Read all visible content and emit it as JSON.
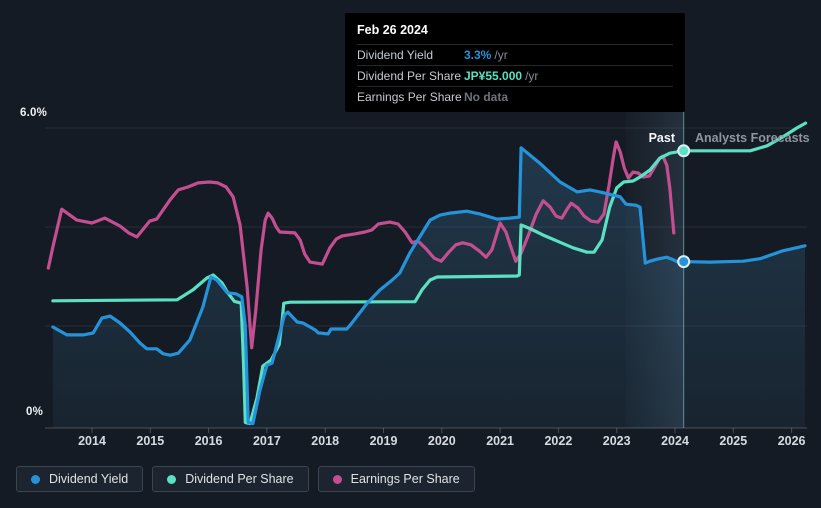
{
  "tooltip": {
    "date": "Feb 26 2024",
    "rows": [
      {
        "label": "Dividend Yield",
        "value": "3.3%",
        "suffix": "/yr",
        "value_color": "#2593d9"
      },
      {
        "label": "Dividend Per Share",
        "value": "JP¥55.000",
        "suffix": "/yr",
        "value_color": "#5be0c3"
      },
      {
        "label": "Earnings Per Share",
        "value": "No data",
        "suffix": "",
        "value_color": "#6d747d"
      }
    ]
  },
  "annotations": {
    "past_label": "Past",
    "forecast_label": "Analysts Forecasts"
  },
  "y_axis": {
    "top_label": "6.0%",
    "bottom_label": "0%"
  },
  "legend": [
    {
      "label": "Dividend Yield",
      "color": "#2593d9"
    },
    {
      "label": "Dividend Per Share",
      "color": "#5be0c3"
    },
    {
      "label": "Earnings Per Share",
      "color": "#c44f90"
    }
  ],
  "colors": {
    "background": "#151b24",
    "gridline": "rgba(151,166,184,0.13)",
    "axis_line": "rgba(151,166,184,0.38)",
    "divider": "rgba(141,184,211,0.65)",
    "band": "rgba(125,175,210,0.15)",
    "area_fill": "rgba(70,150,200,0.22)",
    "dot_ring": "#ddeef5"
  },
  "chart_data": {
    "type": "line",
    "title": "Dividend history and forecast",
    "x_axis": {
      "tick_labels": [
        "2014",
        "2015",
        "2016",
        "2017",
        "2018",
        "2019",
        "2020",
        "2021",
        "2022",
        "2023",
        "2024",
        "2025",
        "2026"
      ],
      "tick_years": [
        2014,
        2015,
        2016,
        2017,
        2018,
        2019,
        2020,
        2021,
        2022,
        2023,
        2024,
        2025,
        2026
      ]
    },
    "y_axis": {
      "min_pct": 0,
      "max_pct": 6,
      "gridline_pcts": [
        6,
        4,
        2
      ],
      "unit": "% (dividend yield axis; other series plotted on same canvas)"
    },
    "divider_year": 2024.15,
    "highlight_band": [
      2023.15,
      2024.15
    ],
    "legend_position": "bottom-left",
    "series": [
      {
        "name": "Earnings Per Share",
        "color": "#c44f90",
        "note": "axis position in % of yield scale; numeric EPS not labeled on chart (tooltip: No data)",
        "points": [
          [
            2013.25,
            3.17
          ],
          [
            2013.33,
            3.6
          ],
          [
            2013.48,
            4.36
          ],
          [
            2013.74,
            4.14
          ],
          [
            2014.0,
            4.08
          ],
          [
            2014.22,
            4.18
          ],
          [
            2014.48,
            4.02
          ],
          [
            2014.63,
            3.88
          ],
          [
            2014.77,
            3.8
          ],
          [
            2014.99,
            4.12
          ],
          [
            2015.11,
            4.16
          ],
          [
            2015.34,
            4.55
          ],
          [
            2015.48,
            4.75
          ],
          [
            2015.65,
            4.81
          ],
          [
            2015.82,
            4.89
          ],
          [
            2016.02,
            4.91
          ],
          [
            2016.16,
            4.89
          ],
          [
            2016.3,
            4.81
          ],
          [
            2016.42,
            4.61
          ],
          [
            2016.54,
            4.04
          ],
          [
            2016.66,
            2.79
          ],
          [
            2016.74,
            1.56
          ],
          [
            2016.81,
            2.32
          ],
          [
            2016.9,
            3.54
          ],
          [
            2016.97,
            4.14
          ],
          [
            2017.02,
            4.28
          ],
          [
            2017.09,
            4.18
          ],
          [
            2017.16,
            4.0
          ],
          [
            2017.22,
            3.9
          ],
          [
            2017.48,
            3.88
          ],
          [
            2017.57,
            3.74
          ],
          [
            2017.65,
            3.45
          ],
          [
            2017.74,
            3.29
          ],
          [
            2017.95,
            3.25
          ],
          [
            2018.08,
            3.58
          ],
          [
            2018.19,
            3.76
          ],
          [
            2018.29,
            3.82
          ],
          [
            2018.51,
            3.86
          ],
          [
            2018.68,
            3.9
          ],
          [
            2018.8,
            3.94
          ],
          [
            2018.91,
            4.06
          ],
          [
            2019.11,
            4.1
          ],
          [
            2019.25,
            4.06
          ],
          [
            2019.37,
            3.9
          ],
          [
            2019.49,
            3.68
          ],
          [
            2019.59,
            3.72
          ],
          [
            2019.73,
            3.56
          ],
          [
            2019.87,
            3.37
          ],
          [
            2019.99,
            3.31
          ],
          [
            2020.12,
            3.49
          ],
          [
            2020.24,
            3.64
          ],
          [
            2020.36,
            3.68
          ],
          [
            2020.5,
            3.64
          ],
          [
            2020.64,
            3.52
          ],
          [
            2020.76,
            3.39
          ],
          [
            2020.86,
            3.54
          ],
          [
            2021.0,
            4.08
          ],
          [
            2021.1,
            3.9
          ],
          [
            2021.2,
            3.54
          ],
          [
            2021.27,
            3.31
          ],
          [
            2021.36,
            3.47
          ],
          [
            2021.48,
            3.82
          ],
          [
            2021.62,
            4.26
          ],
          [
            2021.74,
            4.53
          ],
          [
            2021.86,
            4.4
          ],
          [
            2021.96,
            4.22
          ],
          [
            2022.06,
            4.18
          ],
          [
            2022.15,
            4.36
          ],
          [
            2022.22,
            4.48
          ],
          [
            2022.34,
            4.38
          ],
          [
            2022.44,
            4.22
          ],
          [
            2022.56,
            4.12
          ],
          [
            2022.68,
            4.1
          ],
          [
            2022.78,
            4.26
          ],
          [
            2022.87,
            4.85
          ],
          [
            2022.94,
            5.39
          ],
          [
            2022.99,
            5.72
          ],
          [
            2023.06,
            5.52
          ],
          [
            2023.13,
            5.19
          ],
          [
            2023.2,
            4.99
          ],
          [
            2023.28,
            5.11
          ],
          [
            2023.37,
            5.09
          ],
          [
            2023.45,
            5.01
          ],
          [
            2023.56,
            5.03
          ],
          [
            2023.64,
            5.19
          ],
          [
            2023.74,
            5.39
          ],
          [
            2023.79,
            5.43
          ],
          [
            2023.86,
            5.25
          ],
          [
            2023.91,
            4.79
          ],
          [
            2023.96,
            4.14
          ],
          [
            2023.98,
            3.88
          ]
        ]
      },
      {
        "name": "Dividend Per Share",
        "color": "#5be0c3",
        "note": "JP¥55.000/yr at Feb 26 2024; plotted position in % of yield scale",
        "points": [
          [
            2013.33,
            2.51
          ],
          [
            2015.46,
            2.53
          ],
          [
            2015.73,
            2.73
          ],
          [
            2015.97,
            2.97
          ],
          [
            2016.08,
            3.03
          ],
          [
            2016.23,
            2.87
          ],
          [
            2016.33,
            2.67
          ],
          [
            2016.44,
            2.5
          ],
          [
            2016.56,
            2.46
          ],
          [
            2016.6,
            1.2
          ],
          [
            2016.63,
            0.05
          ],
          [
            2016.71,
            0.03
          ],
          [
            2016.83,
            0.55
          ],
          [
            2016.93,
            1.19
          ],
          [
            2017.07,
            1.31
          ],
          [
            2017.21,
            1.62
          ],
          [
            2017.26,
            2.1
          ],
          [
            2017.29,
            2.46
          ],
          [
            2017.4,
            2.48
          ],
          [
            2019.54,
            2.49
          ],
          [
            2019.66,
            2.73
          ],
          [
            2019.8,
            2.93
          ],
          [
            2019.92,
            2.99
          ],
          [
            2021.29,
            3.01
          ],
          [
            2021.33,
            3.03
          ],
          [
            2021.36,
            4.04
          ],
          [
            2021.51,
            3.97
          ],
          [
            2021.77,
            3.82
          ],
          [
            2022.03,
            3.69
          ],
          [
            2022.25,
            3.58
          ],
          [
            2022.49,
            3.49
          ],
          [
            2022.61,
            3.49
          ],
          [
            2022.75,
            3.74
          ],
          [
            2022.88,
            4.4
          ],
          [
            2023.0,
            4.79
          ],
          [
            2023.12,
            4.91
          ],
          [
            2023.28,
            4.93
          ],
          [
            2023.4,
            5.01
          ],
          [
            2023.57,
            5.15
          ],
          [
            2023.74,
            5.39
          ],
          [
            2023.91,
            5.49
          ],
          [
            2024.15,
            5.54
          ],
          [
            2025.29,
            5.54
          ],
          [
            2025.58,
            5.64
          ],
          [
            2025.85,
            5.82
          ],
          [
            2026.09,
            6.0
          ],
          [
            2026.24,
            6.1
          ]
        ]
      },
      {
        "name": "Dividend Yield",
        "color": "#2593d9",
        "unit": "%",
        "points": [
          [
            2013.33,
            1.98
          ],
          [
            2013.57,
            1.82
          ],
          [
            2013.85,
            1.82
          ],
          [
            2014.02,
            1.86
          ],
          [
            2014.17,
            2.16
          ],
          [
            2014.31,
            2.2
          ],
          [
            2014.48,
            2.06
          ],
          [
            2014.65,
            1.88
          ],
          [
            2014.82,
            1.66
          ],
          [
            2014.94,
            1.54
          ],
          [
            2015.11,
            1.54
          ],
          [
            2015.22,
            1.44
          ],
          [
            2015.34,
            1.41
          ],
          [
            2015.48,
            1.45
          ],
          [
            2015.68,
            1.72
          ],
          [
            2015.9,
            2.38
          ],
          [
            2016.04,
            2.99
          ],
          [
            2016.14,
            2.93
          ],
          [
            2016.32,
            2.67
          ],
          [
            2016.47,
            2.65
          ],
          [
            2016.57,
            2.59
          ],
          [
            2016.63,
            2.0
          ],
          [
            2016.68,
            0.05
          ],
          [
            2016.76,
            0.03
          ],
          [
            2016.88,
            0.7
          ],
          [
            2017.0,
            1.21
          ],
          [
            2017.09,
            1.25
          ],
          [
            2017.3,
            2.22
          ],
          [
            2017.36,
            2.28
          ],
          [
            2017.52,
            2.08
          ],
          [
            2017.62,
            2.06
          ],
          [
            2017.83,
            1.92
          ],
          [
            2017.88,
            1.86
          ],
          [
            2018.05,
            1.84
          ],
          [
            2018.1,
            1.94
          ],
          [
            2018.37,
            1.94
          ],
          [
            2018.43,
            2.02
          ],
          [
            2018.72,
            2.46
          ],
          [
            2018.94,
            2.73
          ],
          [
            2019.15,
            2.93
          ],
          [
            2019.28,
            3.07
          ],
          [
            2019.45,
            3.47
          ],
          [
            2019.8,
            4.14
          ],
          [
            2019.97,
            4.24
          ],
          [
            2020.14,
            4.28
          ],
          [
            2020.43,
            4.32
          ],
          [
            2020.66,
            4.26
          ],
          [
            2020.95,
            4.16
          ],
          [
            2021.17,
            4.18
          ],
          [
            2021.33,
            4.2
          ],
          [
            2021.36,
            5.6
          ],
          [
            2021.68,
            5.29
          ],
          [
            2022.03,
            4.91
          ],
          [
            2022.32,
            4.71
          ],
          [
            2022.54,
            4.75
          ],
          [
            2022.71,
            4.71
          ],
          [
            2022.92,
            4.65
          ],
          [
            2023.06,
            4.61
          ],
          [
            2023.16,
            4.46
          ],
          [
            2023.33,
            4.44
          ],
          [
            2023.4,
            4.4
          ],
          [
            2023.49,
            3.27
          ],
          [
            2023.57,
            3.31
          ],
          [
            2023.69,
            3.35
          ],
          [
            2023.86,
            3.39
          ],
          [
            2023.95,
            3.35
          ],
          [
            2024.05,
            3.29
          ],
          [
            2024.15,
            3.3
          ],
          [
            2024.6,
            3.29
          ],
          [
            2025.17,
            3.31
          ],
          [
            2025.46,
            3.36
          ],
          [
            2025.85,
            3.52
          ],
          [
            2026.23,
            3.62
          ]
        ],
        "area_fill": true
      }
    ],
    "markers": [
      {
        "series": "Dividend Per Share",
        "x": 2024.15,
        "y": 5.54
      },
      {
        "series": "Dividend Yield",
        "x": 2024.15,
        "y": 3.3
      }
    ]
  }
}
